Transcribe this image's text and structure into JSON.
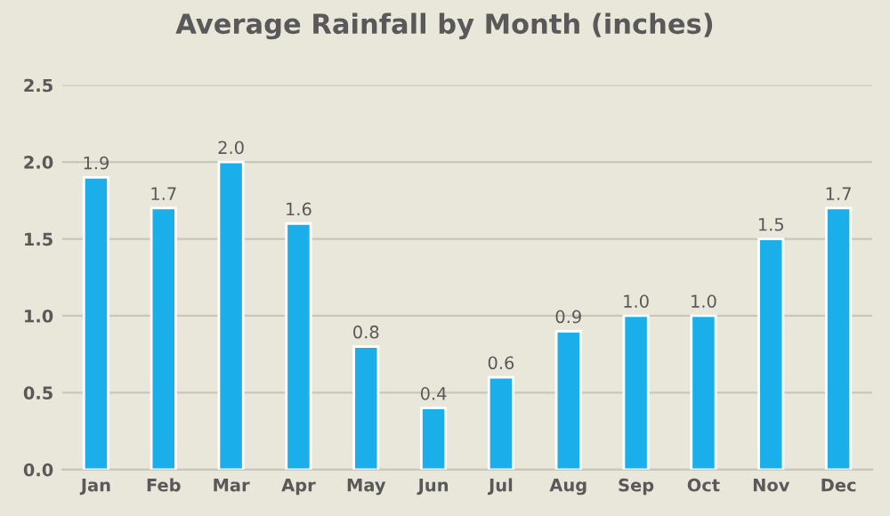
{
  "chart_data": {
    "type": "bar",
    "title": "Average Rainfall by Month (inches)",
    "categories": [
      "Jan",
      "Feb",
      "Mar",
      "Apr",
      "May",
      "Jun",
      "Jul",
      "Aug",
      "Sep",
      "Oct",
      "Nov",
      "Dec"
    ],
    "values": [
      1.9,
      1.7,
      2.0,
      1.6,
      0.8,
      0.4,
      0.6,
      0.9,
      1.0,
      1.0,
      1.5,
      1.7
    ],
    "value_labels": [
      "1.9",
      "1.7",
      "2.0",
      "1.6",
      "0.8",
      "0.4",
      "0.6",
      "0.9",
      "1.0",
      "1.0",
      "1.5",
      "1.7"
    ],
    "color": "#1aaeea",
    "ylim": [
      0,
      2.5
    ],
    "yticks": [
      {
        "value": 0,
        "label": "0.0"
      },
      {
        "value": 0.5,
        "label": "0.5"
      },
      {
        "value": 1.0,
        "label": "1.0"
      },
      {
        "value": 1.5,
        "label": "1.5"
      },
      {
        "value": 2.0,
        "label": "2.0"
      },
      {
        "value": 2.5,
        "label": "2.5"
      }
    ],
    "grid": "y",
    "legend": false
  }
}
